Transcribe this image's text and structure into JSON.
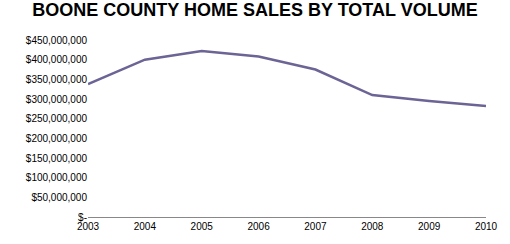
{
  "chart_data": {
    "type": "line",
    "title": "BOONE COUNTY HOME SALES BY TOTAL VOLUME",
    "categories": [
      "2003",
      "2004",
      "2005",
      "2006",
      "2007",
      "2008",
      "2009",
      "2010"
    ],
    "values": [
      338000000,
      400000000,
      422000000,
      408000000,
      375000000,
      310000000,
      295000000,
      282000000
    ],
    "color": "#6b6494",
    "ylim": [
      0,
      450000000
    ],
    "yticks": [
      {
        "value": 0,
        "label": "$-"
      },
      {
        "value": 50000000,
        "label": "$50,000,000"
      },
      {
        "value": 100000000,
        "label": "$100,000,000"
      },
      {
        "value": 150000000,
        "label": "$150,000,000"
      },
      {
        "value": 200000000,
        "label": "$200,000,000"
      },
      {
        "value": 250000000,
        "label": "$250,000,000"
      },
      {
        "value": 300000000,
        "label": "$300,000,000"
      },
      {
        "value": 350000000,
        "label": "$350,000,000"
      },
      {
        "value": 400000000,
        "label": "$400,000,000"
      },
      {
        "value": 450000000,
        "label": "$450,000,000"
      }
    ],
    "grid": false
  }
}
